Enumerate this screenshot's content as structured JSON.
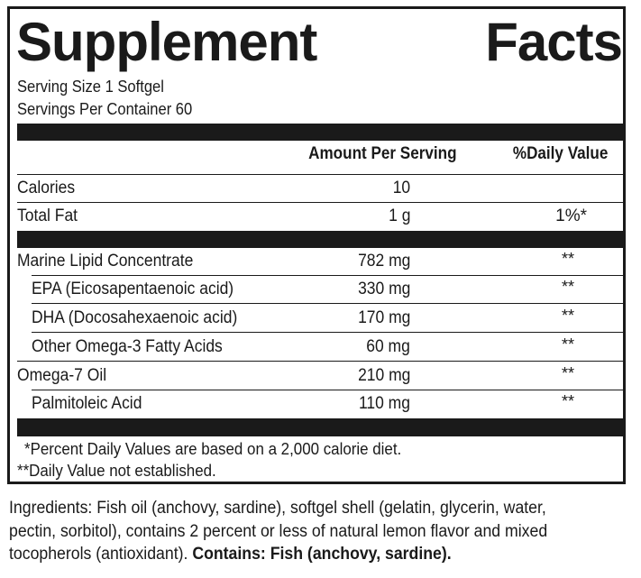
{
  "title": {
    "word1": "Supplement",
    "word2": "Facts"
  },
  "serving": {
    "size": "Serving Size 1 Softgel",
    "per_container": "Servings Per Container 60"
  },
  "headers": {
    "amount": "Amount Per Serving",
    "daily_value": "%Daily Value"
  },
  "rows": [
    {
      "name": "Calories",
      "amount": "10",
      "dv": ""
    },
    {
      "name": "Total Fat",
      "amount": "1 g",
      "dv": "1%*"
    },
    {
      "name": "Marine Lipid Concentrate",
      "amount": "782 mg",
      "dv": "**"
    },
    {
      "name": "EPA (Eicosapentaenoic acid)",
      "amount": "330 mg",
      "dv": "**"
    },
    {
      "name": "DHA (Docosahexaenoic acid)",
      "amount": "170 mg",
      "dv": "**"
    },
    {
      "name": "Other Omega-3 Fatty Acids",
      "amount": "60 mg",
      "dv": "**"
    },
    {
      "name": "Omega-7 Oil",
      "amount": "210 mg",
      "dv": "**"
    },
    {
      "name": "Palmitoleic Acid",
      "amount": "110 mg",
      "dv": "**"
    }
  ],
  "footnotes": {
    "percent": "*Percent Daily Values are based on a 2,000 calorie diet.",
    "not_established": "**Daily Value not established."
  },
  "ingredients": {
    "line1": "Ingredients: Fish oil (anchovy, sardine), softgel shell (gelatin, glycerin, water,",
    "line2": "pectin, sorbitol), contains 2 percent or less of natural lemon flavor and mixed",
    "line3_text": "tocopherols (antioxidant). ",
    "line3_bold": "Contains: Fish (anchovy, sardine)."
  }
}
